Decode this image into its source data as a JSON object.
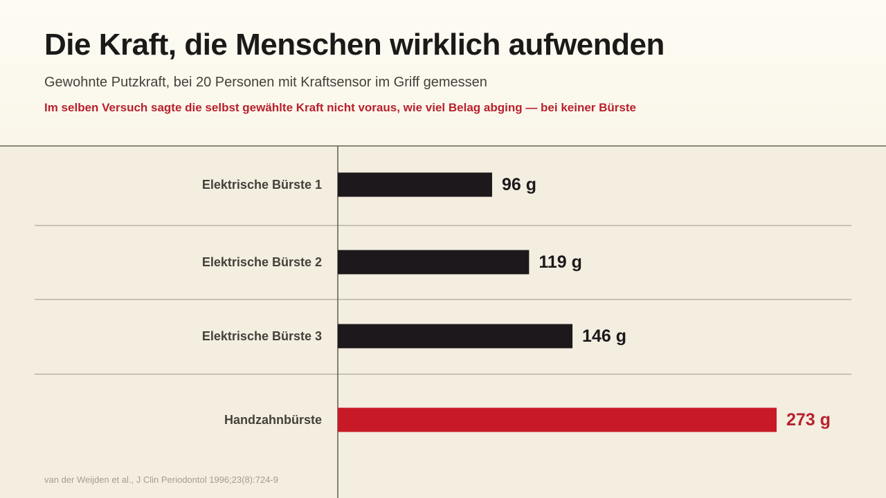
{
  "header": {
    "title": "Die Kraft, die Menschen wirklich aufwenden",
    "subtitle": "Gewohnte Putzkraft, bei 20 Personen mit Kraftsensor im Griff gemessen",
    "note": "Im selben Versuch sagte die selbst gewählte Kraft nicht voraus, wie viel Belag abging — bei keiner Bürste"
  },
  "source": "van der Weijden et al., J Clin Periodontol 1996;23(8):724-9",
  "colors": {
    "bar_default": "#1c181b",
    "bar_highlight": "#c81927",
    "label_default": "#1c181b",
    "label_highlight": "#b8212c",
    "note": "#b8212c"
  },
  "chart_data": {
    "type": "bar",
    "orientation": "horizontal",
    "unit": "g",
    "categories": [
      "Elektrische Bürste 1",
      "Elektrische Bürste 2",
      "Elektrische Bürste 3",
      "Handzahnbürste"
    ],
    "values": [
      96,
      119,
      146,
      273
    ],
    "value_labels": [
      "96 g",
      "119 g",
      "146 g",
      "273 g"
    ],
    "highlight": [
      "Handzahnbürste"
    ],
    "xlim": [
      0,
      273
    ],
    "grid": false,
    "legend": "none"
  }
}
